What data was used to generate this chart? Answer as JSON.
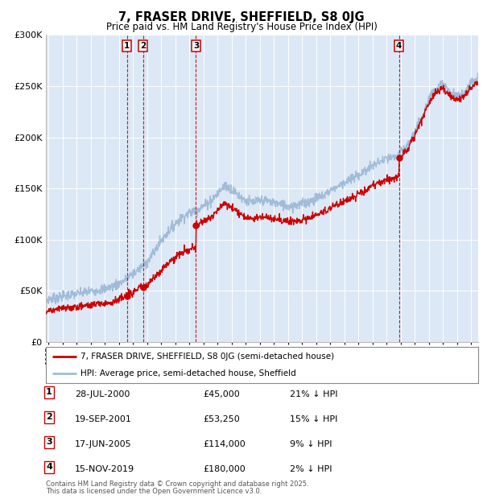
{
  "title": "7, FRASER DRIVE, SHEFFIELD, S8 0JG",
  "subtitle": "Price paid vs. HM Land Registry's House Price Index (HPI)",
  "legend_line1": "7, FRASER DRIVE, SHEFFIELD, S8 0JG (semi-detached house)",
  "legend_line2": "HPI: Average price, semi-detached house, Sheffield",
  "footer1": "Contains HM Land Registry data © Crown copyright and database right 2025.",
  "footer2": "This data is licensed under the Open Government Licence v3.0.",
  "transactions": [
    {
      "num": 1,
      "date": "28-JUL-2000",
      "date_f": 2000.57,
      "price": 45000,
      "pct": "21% ↓ HPI"
    },
    {
      "num": 2,
      "date": "19-SEP-2001",
      "date_f": 2001.71,
      "price": 53250,
      "pct": "15% ↓ HPI"
    },
    {
      "num": 3,
      "date": "17-JUN-2005",
      "date_f": 2005.46,
      "price": 114000,
      "pct": "9% ↓ HPI"
    },
    {
      "num": 4,
      "date": "15-NOV-2019",
      "date_f": 2019.87,
      "price": 180000,
      "pct": "2% ↓ HPI"
    }
  ],
  "ylim": [
    0,
    300000
  ],
  "xlim": [
    1994.8,
    2025.5
  ],
  "hpi_color": "#a0bcd8",
  "price_color": "#cc0000",
  "bg_color": "#dce8f5",
  "grid_color": "#ffffff",
  "transaction_line_color": "#cc0000",
  "box_color": "#cc0000",
  "dot_color": "#cc0000"
}
